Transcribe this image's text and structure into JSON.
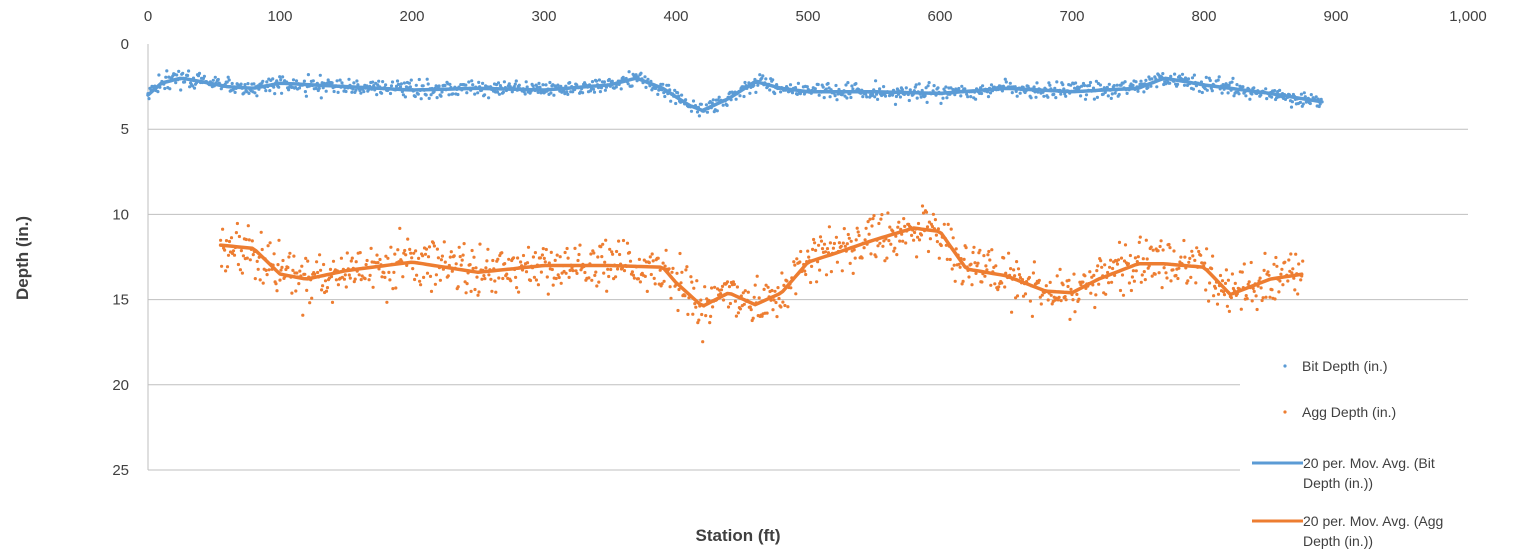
{
  "chart_data": {
    "type": "scatter",
    "title": "",
    "xlabel": "Station (ft)",
    "ylabel": "Depth (in.)",
    "xlim": [
      0,
      1000
    ],
    "ylim": [
      0,
      25
    ],
    "y_reversed": true,
    "x_axis_position": "top",
    "x_ticks": [
      "0",
      "100",
      "200",
      "300",
      "400",
      "500",
      "600",
      "700",
      "800",
      "900",
      "1,000"
    ],
    "x_tick_values": [
      0,
      100,
      200,
      300,
      400,
      500,
      600,
      700,
      800,
      900,
      1000
    ],
    "y_ticks": [
      "0",
      "5",
      "10",
      "15",
      "20",
      "25"
    ],
    "y_tick_values": [
      0,
      5,
      10,
      15,
      20,
      25
    ],
    "grid": "horizontal major gridlines",
    "legend_position": "bottom-right",
    "series": [
      {
        "name": "Bit Depth (in.)",
        "kind": "scatter",
        "color": "#5B9BD5",
        "x_range": [
          0,
          890
        ],
        "noise": 0.35
      },
      {
        "name": "Agg Depth (in.)",
        "kind": "scatter",
        "color": "#ED7D31",
        "x_range": [
          55,
          875
        ],
        "noise": 1.1
      },
      {
        "name": "20 per. Mov. Avg. (Bit Depth (in.))",
        "kind": "line",
        "color": "#5B9BD5",
        "x": [
          0,
          10,
          25,
          40,
          60,
          80,
          100,
          150,
          200,
          250,
          300,
          350,
          370,
          390,
          410,
          420,
          440,
          460,
          480,
          500,
          550,
          600,
          650,
          700,
          750,
          770,
          800,
          850,
          890
        ],
        "y": [
          3.0,
          2.3,
          2.0,
          2.2,
          2.5,
          2.6,
          2.3,
          2.5,
          2.7,
          2.6,
          2.7,
          2.4,
          2.0,
          2.6,
          3.6,
          3.9,
          3.2,
          2.2,
          2.6,
          2.8,
          2.8,
          2.9,
          2.6,
          2.8,
          2.6,
          2.0,
          2.4,
          2.9,
          3.4
        ]
      },
      {
        "name": "20 per. Mov. Avg. (Agg Depth (in.))",
        "kind": "line",
        "color": "#ED7D31",
        "x": [
          55,
          80,
          100,
          120,
          150,
          200,
          250,
          300,
          350,
          390,
          400,
          420,
          440,
          460,
          480,
          500,
          520,
          550,
          580,
          600,
          620,
          650,
          680,
          700,
          720,
          750,
          770,
          800,
          820,
          850,
          875
        ],
        "y": [
          11.8,
          12.0,
          13.5,
          13.8,
          13.3,
          12.8,
          13.4,
          13.0,
          13.0,
          13.1,
          14.0,
          15.4,
          14.6,
          15.3,
          14.6,
          12.8,
          12.3,
          11.5,
          10.8,
          11.0,
          13.2,
          13.6,
          14.5,
          14.6,
          13.8,
          12.9,
          12.9,
          13.1,
          14.7,
          13.8,
          13.5
        ]
      }
    ]
  }
}
